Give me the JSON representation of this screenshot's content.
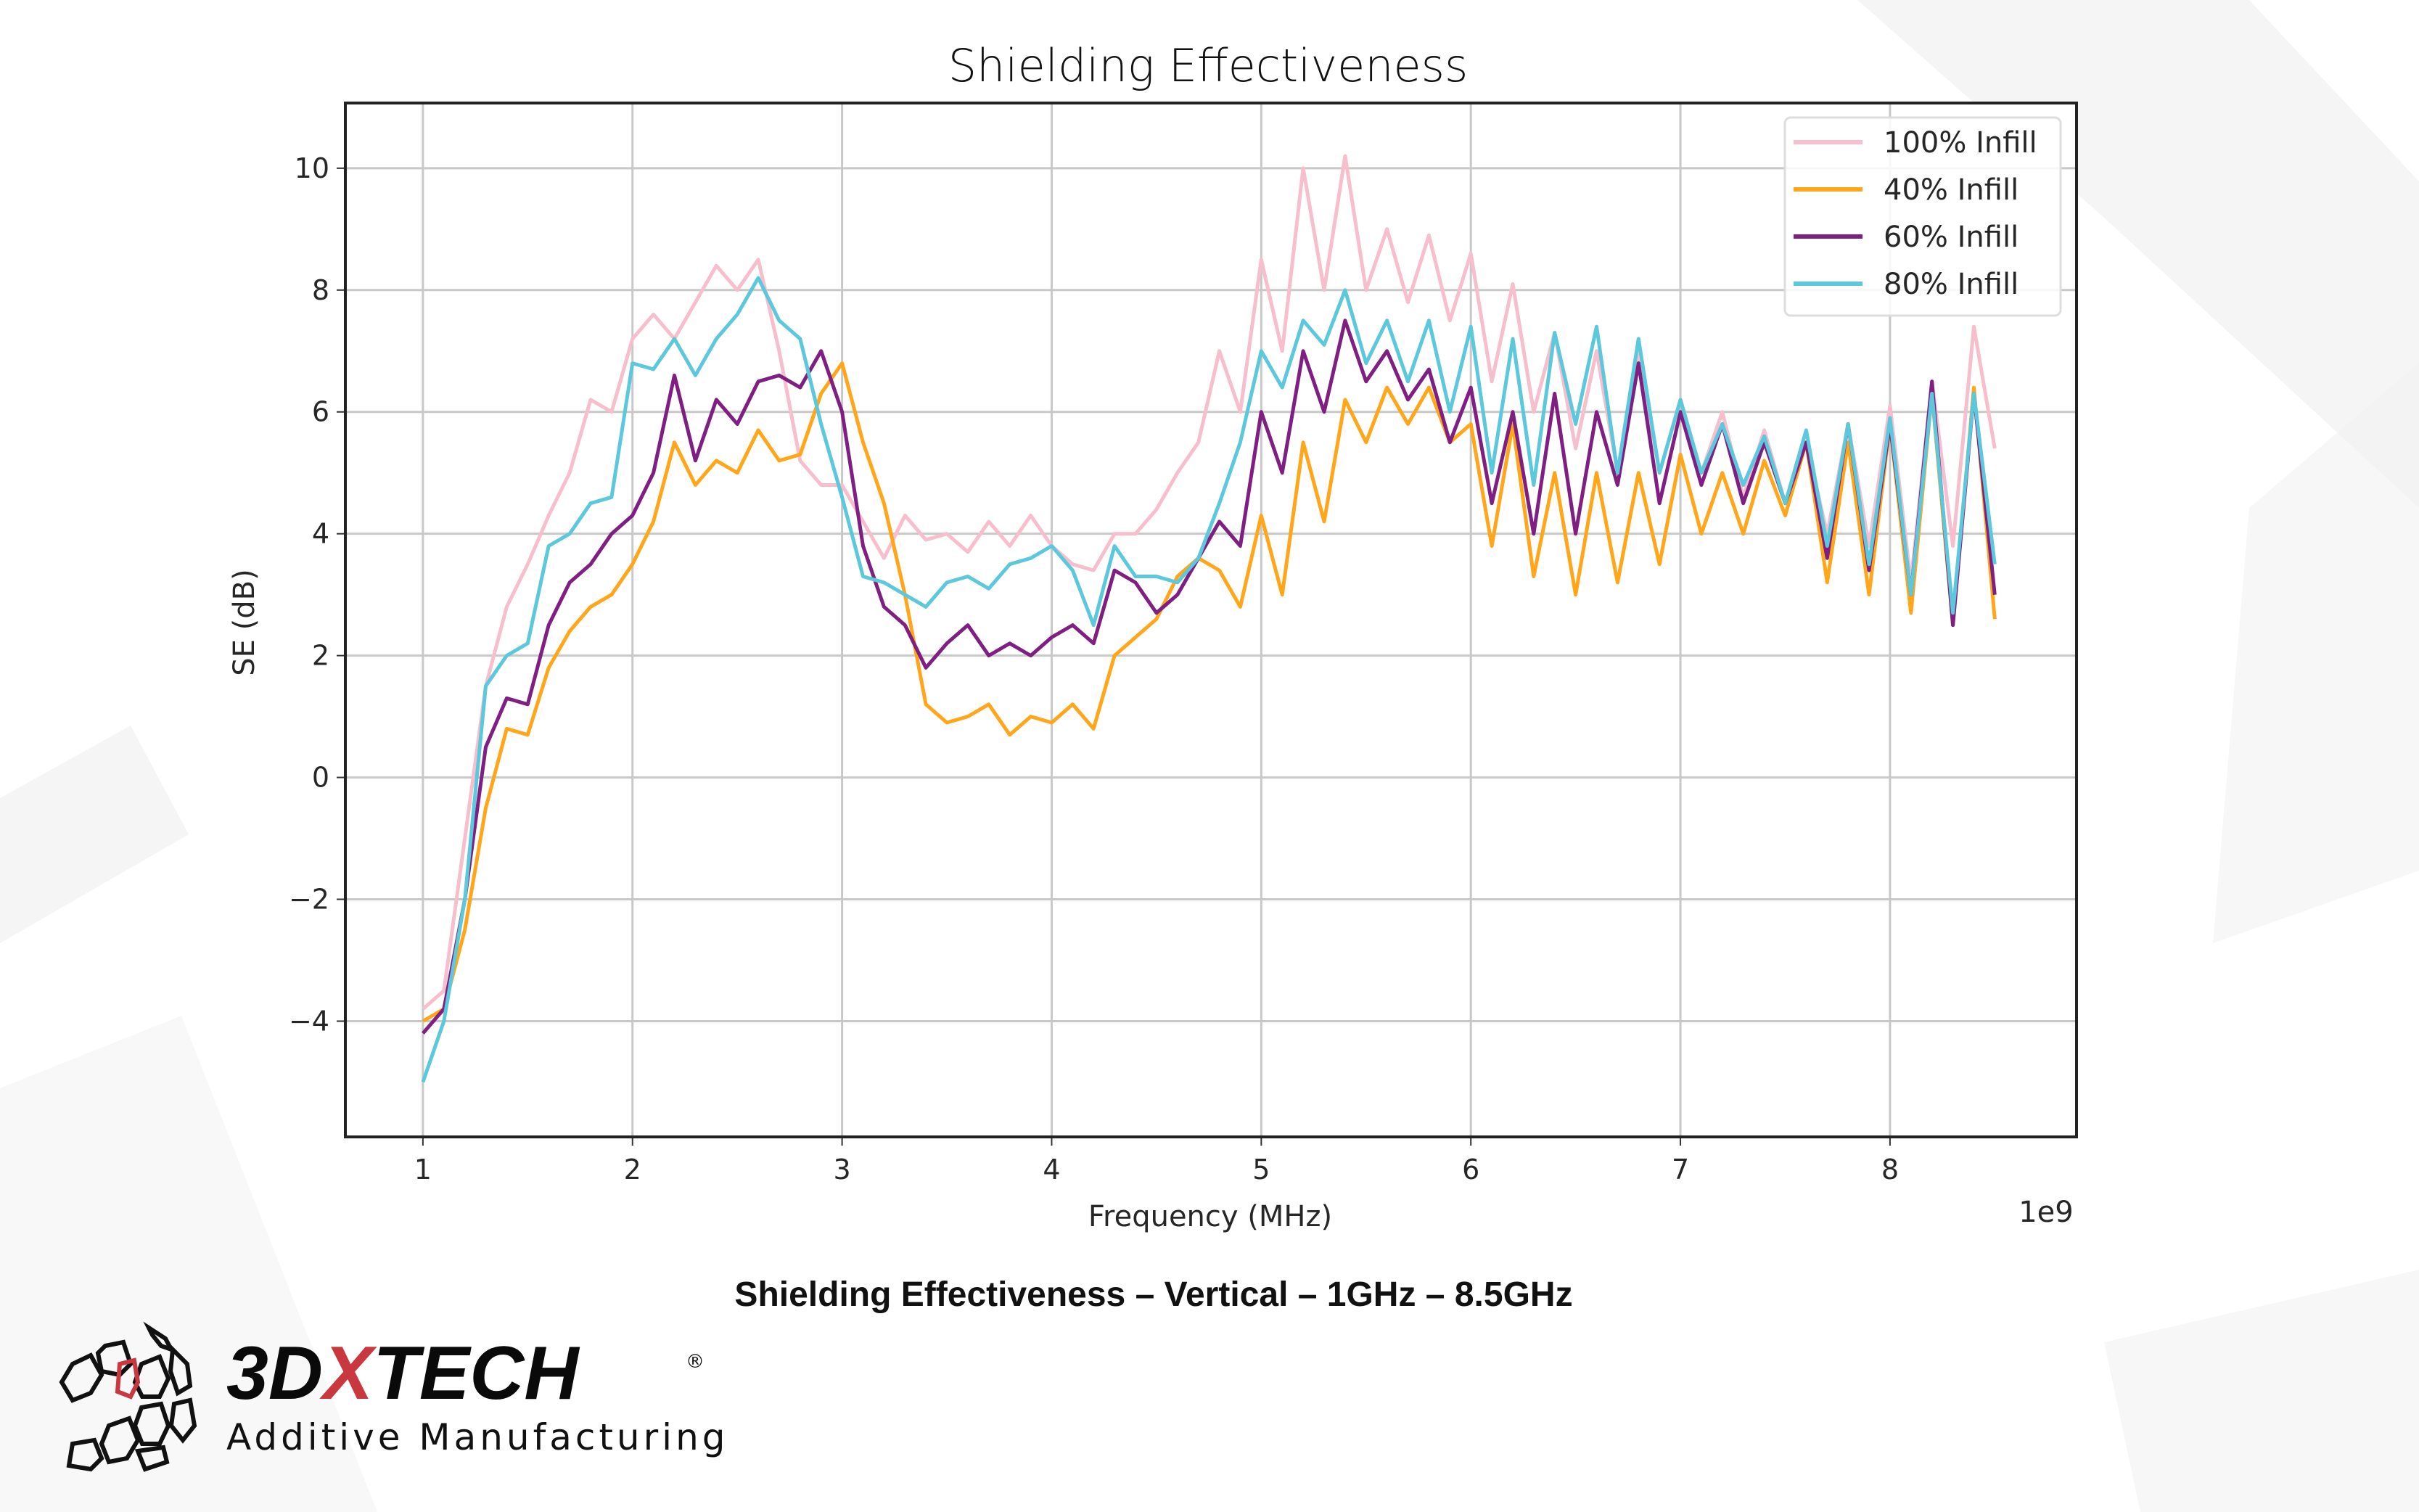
{
  "chart_data": {
    "type": "line",
    "title": "Shielding Effectiveness",
    "caption": "Shielding Effectiveness – Vertical – 1GHz – 8.5GHz",
    "xlabel": "Frequency (MHz)",
    "x_offset_label": "1e9",
    "ylabel": "SE (dB)",
    "xlim": [
      0.63,
      8.89
    ],
    "ylim": [
      -5.9,
      11.07
    ],
    "xticks": [
      1,
      2,
      3,
      4,
      5,
      6,
      7,
      8
    ],
    "yticks": [
      -4,
      -2,
      0,
      2,
      4,
      6,
      8,
      10
    ],
    "ytick_labels": [
      "−4",
      "−2",
      "0",
      "2",
      "4",
      "6",
      "8",
      "10"
    ],
    "grid": true,
    "legend_position": "top-right",
    "x_start": 1.0,
    "x_step": 0.1,
    "series": [
      {
        "name": "100% Infill",
        "color": "#f7bfcd",
        "values": [
          -3.8,
          -3.5,
          -1,
          1.5,
          2.8,
          3.5,
          4.3,
          5,
          6.2,
          6,
          7.2,
          7.6,
          7.2,
          7.8,
          8.4,
          8,
          8.5,
          7,
          5.2,
          4.8,
          4.8,
          4.2,
          3.6,
          4.3,
          3.9,
          4,
          3.7,
          4.2,
          3.8,
          4.3,
          3.8,
          3.5,
          3.4,
          4,
          4,
          4.4,
          5,
          5.5,
          7,
          6,
          8.5,
          7,
          10,
          8,
          10.2,
          8,
          9,
          7.8,
          8.9,
          7.5,
          8.6,
          6.5,
          8.1,
          6,
          7.3,
          5.4,
          7,
          5,
          7,
          5,
          6.2,
          5,
          6,
          4.6,
          5.7,
          4.5,
          5.5,
          4,
          5.8,
          3.8,
          6.1,
          3.2,
          6.5,
          3.8,
          7.4,
          5.4
        ]
      },
      {
        "name": "40% Infill",
        "color": "#ffa61a",
        "values": [
          -4,
          -3.8,
          -2.5,
          -0.5,
          0.8,
          0.7,
          1.8,
          2.4,
          2.8,
          3,
          3.5,
          4.2,
          5.5,
          4.8,
          5.2,
          5,
          5.7,
          5.2,
          5.3,
          6.3,
          6.8,
          5.5,
          4.5,
          3,
          1.2,
          0.9,
          1,
          1.2,
          0.7,
          1,
          0.9,
          1.2,
          0.8,
          2,
          2.3,
          2.6,
          3.3,
          3.6,
          3.4,
          2.8,
          4.3,
          3,
          5.5,
          4.2,
          6.2,
          5.5,
          6.4,
          5.8,
          6.4,
          5.5,
          5.8,
          3.8,
          5.8,
          3.3,
          5,
          3,
          5,
          3.2,
          5,
          3.5,
          5.3,
          4,
          5,
          4,
          5.2,
          4.3,
          5.5,
          3.2,
          5.5,
          3,
          5.8,
          2.7,
          6.3,
          2.5,
          6.4,
          2.6
        ]
      },
      {
        "name": "60% Infill",
        "color": "#7f1f82",
        "values": [
          -4.2,
          -3.8,
          -2,
          0.5,
          1.3,
          1.2,
          2.5,
          3.2,
          3.5,
          4,
          4.3,
          5,
          6.6,
          5.2,
          6.2,
          5.8,
          6.5,
          6.6,
          6.4,
          7,
          6,
          3.8,
          2.8,
          2.5,
          1.8,
          2.2,
          2.5,
          2,
          2.2,
          2,
          2.3,
          2.5,
          2.2,
          3.4,
          3.2,
          2.7,
          3,
          3.6,
          4.2,
          3.8,
          6,
          5,
          7,
          6,
          7.5,
          6.5,
          7,
          6.2,
          6.7,
          5.5,
          6.4,
          4.5,
          6,
          4,
          6.3,
          4,
          6,
          4.8,
          6.8,
          4.5,
          6,
          4.8,
          5.8,
          4.5,
          5.5,
          4.5,
          5.5,
          3.6,
          5.8,
          3.4,
          5.8,
          3,
          6.5,
          2.5,
          6.3,
          3
        ]
      },
      {
        "name": "80% Infill",
        "color": "#5cc8dc",
        "values": [
          -5,
          -4,
          -2,
          1.5,
          2,
          2.2,
          3.8,
          4,
          4.5,
          4.6,
          6.8,
          6.7,
          7.2,
          6.6,
          7.2,
          7.6,
          8.2,
          7.5,
          7.2,
          5.8,
          4.6,
          3.3,
          3.2,
          3,
          2.8,
          3.2,
          3.3,
          3.1,
          3.5,
          3.6,
          3.8,
          3.4,
          2.5,
          3.8,
          3.3,
          3.3,
          3.2,
          3.6,
          4.5,
          5.5,
          7,
          6.4,
          7.5,
          7.1,
          8,
          6.8,
          7.5,
          6.5,
          7.5,
          6,
          7.4,
          5,
          7.2,
          4.8,
          7.3,
          5.8,
          7.4,
          5,
          7.2,
          5,
          6.2,
          5,
          5.8,
          4.8,
          5.6,
          4.5,
          5.7,
          3.8,
          5.8,
          3.5,
          5.9,
          3,
          6.3,
          2.7,
          6.3,
          3.5
        ]
      }
    ]
  },
  "logo": {
    "brand": "3DXTECH",
    "brand_colors": {
      "main": "#0a0a0a",
      "accent": "#c9383f"
    },
    "registered": "®",
    "tagline": "Additive Manufacturing"
  }
}
